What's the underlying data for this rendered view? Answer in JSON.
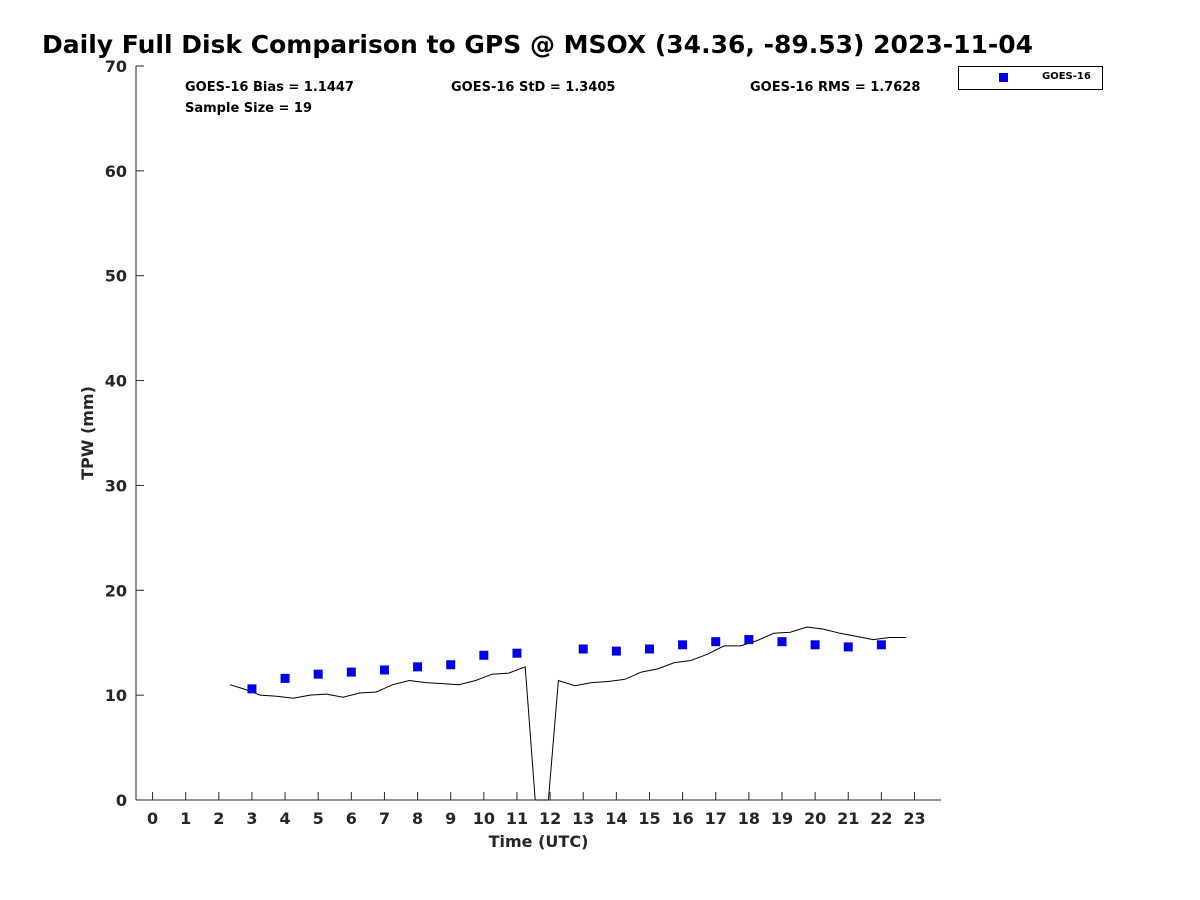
{
  "colors": {
    "goes16": "#0000e0",
    "gps_line": "#000000",
    "axis": "#262626"
  },
  "stats": {
    "bias": "GOES-16 Bias = 1.1447",
    "std": "GOES-16 StD = 1.3405",
    "rms": "GOES-16 RMS = 1.7628",
    "sample_size": "Sample Size = 19"
  },
  "chart_data": {
    "type": "scatter",
    "title": "Daily Full Disk Comparison to GPS @ MSOX (34.36, -89.53) 2023-11-04",
    "xlabel": "Time (UTC)",
    "ylabel": "TPW (mm)",
    "xlim": [
      -0.5,
      23.8
    ],
    "ylim": [
      0,
      70
    ],
    "x_ticks": [
      0,
      1,
      2,
      3,
      4,
      5,
      6,
      7,
      8,
      9,
      10,
      11,
      12,
      13,
      14,
      15,
      16,
      17,
      18,
      19,
      20,
      21,
      22,
      23
    ],
    "y_ticks": [
      0,
      10,
      20,
      30,
      40,
      50,
      60,
      70
    ],
    "grid": false,
    "legend": {
      "position": "top-right (outside plot)",
      "entries": [
        "GOES-16"
      ]
    },
    "series": [
      {
        "name": "GOES-16",
        "kind": "scatter",
        "x": [
          3,
          4,
          5,
          6,
          7,
          8,
          9,
          10,
          11,
          13,
          14,
          15,
          16,
          17,
          18,
          19,
          20,
          21,
          22
        ],
        "y": [
          10.6,
          11.6,
          12.0,
          12.2,
          12.4,
          12.7,
          12.9,
          13.8,
          14.0,
          14.4,
          14.2,
          14.4,
          14.8,
          15.1,
          15.3,
          15.1,
          14.8,
          14.6,
          14.8
        ]
      },
      {
        "kind": "line",
        "x": [
          2.33,
          2.75,
          3.25,
          3.75,
          4.25,
          4.75,
          5.25,
          5.75,
          6.25,
          6.75,
          7.25,
          7.75,
          8.25,
          8.75,
          9.25,
          9.75,
          10.25,
          10.75,
          11.25,
          11.55,
          11.95,
          12.25,
          12.75,
          13.25,
          13.75,
          14.25,
          14.75,
          15.25,
          15.75,
          16.25,
          16.75,
          17.25,
          17.75,
          18.25,
          18.75,
          19.25,
          19.75,
          20.25,
          20.75,
          21.25,
          21.75,
          22.25,
          22.75
        ],
        "y": [
          11.0,
          10.6,
          10.0,
          9.9,
          9.7,
          10.0,
          10.1,
          9.8,
          10.2,
          10.3,
          11.0,
          11.4,
          11.2,
          11.1,
          11.0,
          11.4,
          12.0,
          12.1,
          12.7,
          0.0,
          0.0,
          11.4,
          10.9,
          11.2,
          11.3,
          11.5,
          12.2,
          12.5,
          13.1,
          13.3,
          13.9,
          14.7,
          14.7,
          15.2,
          15.9,
          16.0,
          16.5,
          16.3,
          15.9,
          15.6,
          15.3,
          15.5,
          15.5
        ]
      }
    ]
  }
}
